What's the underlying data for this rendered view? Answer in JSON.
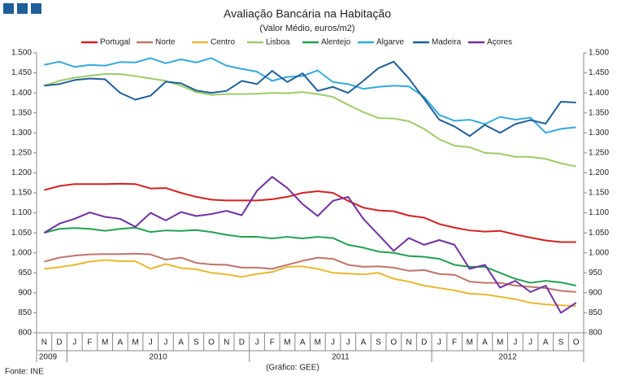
{
  "chart_data": {
    "type": "line",
    "title": "Avaliação Bancária na Habitação",
    "subtitle": "(Valor Médio, euros/m2)",
    "source": "Fonte: INE",
    "credit": "(Gráfico: GEE)",
    "groups": [
      {
        "label": "2009",
        "categories": [
          "N",
          "D"
        ]
      },
      {
        "label": "2010",
        "categories": [
          "J",
          "F",
          "M",
          "A",
          "M",
          "J",
          "J",
          "A",
          "S",
          "O",
          "N",
          "D"
        ]
      },
      {
        "label": "2011",
        "categories": [
          "J",
          "F",
          "M",
          "A",
          "M",
          "J",
          "J",
          "A",
          "S",
          "O",
          "N",
          "D"
        ]
      },
      {
        "label": "2012",
        "categories": [
          "J",
          "F",
          "M",
          "A",
          "M",
          "J",
          "J",
          "A",
          "S",
          "O"
        ]
      }
    ],
    "ylim": [
      800,
      1500
    ],
    "yticks": [
      800,
      850,
      900,
      950,
      {
        "value": 1000,
        "label": "1.000"
      },
      {
        "value": 1050,
        "label": "1.050"
      },
      {
        "value": 1100,
        "label": "1.100"
      },
      {
        "value": 1150,
        "label": "1.150"
      },
      {
        "value": 1200,
        "label": "1.200"
      },
      {
        "value": 1250,
        "label": "1.250"
      },
      {
        "value": 1300,
        "label": "1.300"
      },
      {
        "value": 1350,
        "label": "1.350"
      },
      {
        "value": 1400,
        "label": "1.400"
      },
      {
        "value": 1450,
        "label": "1.450"
      },
      {
        "value": 1500,
        "label": "1.500"
      }
    ],
    "y2lim": [
      800,
      1500
    ],
    "y2ticks": [
      800,
      850,
      900,
      950,
      {
        "value": 1000,
        "label": "1.000"
      },
      {
        "value": 1050,
        "label": "1.050"
      },
      {
        "value": 1100,
        "label": "1.100"
      },
      {
        "value": 1150,
        "label": "1.150"
      },
      {
        "value": 1200,
        "label": "1.200"
      },
      {
        "value": 1250,
        "label": "1.250"
      },
      {
        "value": 1300,
        "label": "1.300"
      },
      {
        "value": 1350,
        "label": "1.350"
      },
      {
        "value": 1400,
        "label": "1.400"
      },
      {
        "value": 1450,
        "label": "1.450"
      },
      {
        "value": 1500,
        "label": "1.500"
      }
    ],
    "grid": false,
    "legend": "top",
    "series": [
      {
        "name": "Portugal",
        "color": "#d42020",
        "values": [
          1157,
          1167,
          1172,
          1172,
          1172,
          1173,
          1172,
          1161,
          1162,
          1150,
          1140,
          1133,
          1131,
          1131,
          1131,
          1134,
          1140,
          1150,
          1154,
          1150,
          1130,
          1113,
          1106,
          1104,
          1093,
          1088,
          1072,
          1063,
          1056,
          1053,
          1055,
          1046,
          1038,
          1031,
          1027,
          1027
        ]
      },
      {
        "name": "Norte",
        "color": "#c07468",
        "values": [
          978,
          988,
          993,
          996,
          997,
          997,
          998,
          996,
          983,
          988,
          975,
          971,
          970,
          963,
          963,
          960,
          970,
          980,
          988,
          985,
          970,
          965,
          966,
          963,
          955,
          957,
          947,
          945,
          928,
          925,
          925,
          918,
          915,
          912,
          905,
          902
        ]
      },
      {
        "name": "Centro",
        "color": "#e8b830",
        "values": [
          960,
          964,
          970,
          978,
          982,
          979,
          979,
          960,
          972,
          962,
          959,
          950,
          946,
          940,
          947,
          952,
          965,
          966,
          960,
          950,
          948,
          946,
          950,
          935,
          928,
          918,
          912,
          906,
          898,
          896,
          890,
          884,
          875,
          871,
          869,
          867
        ]
      },
      {
        "name": "Lisboa",
        "color": "#9ccc68",
        "values": [
          1418,
          1430,
          1438,
          1443,
          1447,
          1447,
          1442,
          1436,
          1430,
          1418,
          1402,
          1395,
          1397,
          1397,
          1398,
          1400,
          1399,
          1402,
          1397,
          1390,
          1370,
          1352,
          1337,
          1336,
          1329,
          1310,
          1284,
          1268,
          1264,
          1250,
          1248,
          1240,
          1240,
          1235,
          1224,
          1216
        ]
      },
      {
        "name": "Alentejo",
        "color": "#22a050",
        "values": [
          1050,
          1060,
          1062,
          1060,
          1055,
          1060,
          1063,
          1052,
          1056,
          1055,
          1057,
          1052,
          1045,
          1040,
          1040,
          1036,
          1040,
          1036,
          1040,
          1037,
          1020,
          1013,
          1003,
          1000,
          992,
          990,
          985,
          970,
          965,
          965,
          950,
          935,
          925,
          930,
          926,
          918
        ]
      },
      {
        "name": "Algarve",
        "color": "#33aadd",
        "values": [
          1470,
          1478,
          1465,
          1470,
          1468,
          1477,
          1476,
          1487,
          1474,
          1484,
          1476,
          1487,
          1468,
          1460,
          1453,
          1430,
          1440,
          1442,
          1456,
          1427,
          1422,
          1410,
          1415,
          1418,
          1416,
          1390,
          1345,
          1330,
          1333,
          1322,
          1340,
          1333,
          1338,
          1300,
          1310,
          1314
        ]
      },
      {
        "name": "Madeira",
        "color": "#1f5f99",
        "values": [
          1418,
          1422,
          1432,
          1436,
          1434,
          1400,
          1383,
          1393,
          1428,
          1424,
          1406,
          1400,
          1405,
          1430,
          1422,
          1455,
          1427,
          1449,
          1405,
          1415,
          1400,
          1430,
          1462,
          1478,
          1436,
          1385,
          1333,
          1316,
          1292,
          1320,
          1300,
          1322,
          1332,
          1323,
          1378,
          1376
        ]
      },
      {
        "name": "Açores",
        "color": "#7030a0",
        "values": [
          1050,
          1073,
          1085,
          1101,
          1090,
          1085,
          1065,
          1100,
          1081,
          1102,
          1092,
          1097,
          1105,
          1094,
          1155,
          1190,
          1162,
          1122,
          1092,
          1130,
          1140,
          1085,
          1045,
          1005,
          1037,
          1020,
          1032,
          1020,
          960,
          970,
          913,
          930,
          902,
          918,
          850,
          875
        ]
      }
    ]
  }
}
